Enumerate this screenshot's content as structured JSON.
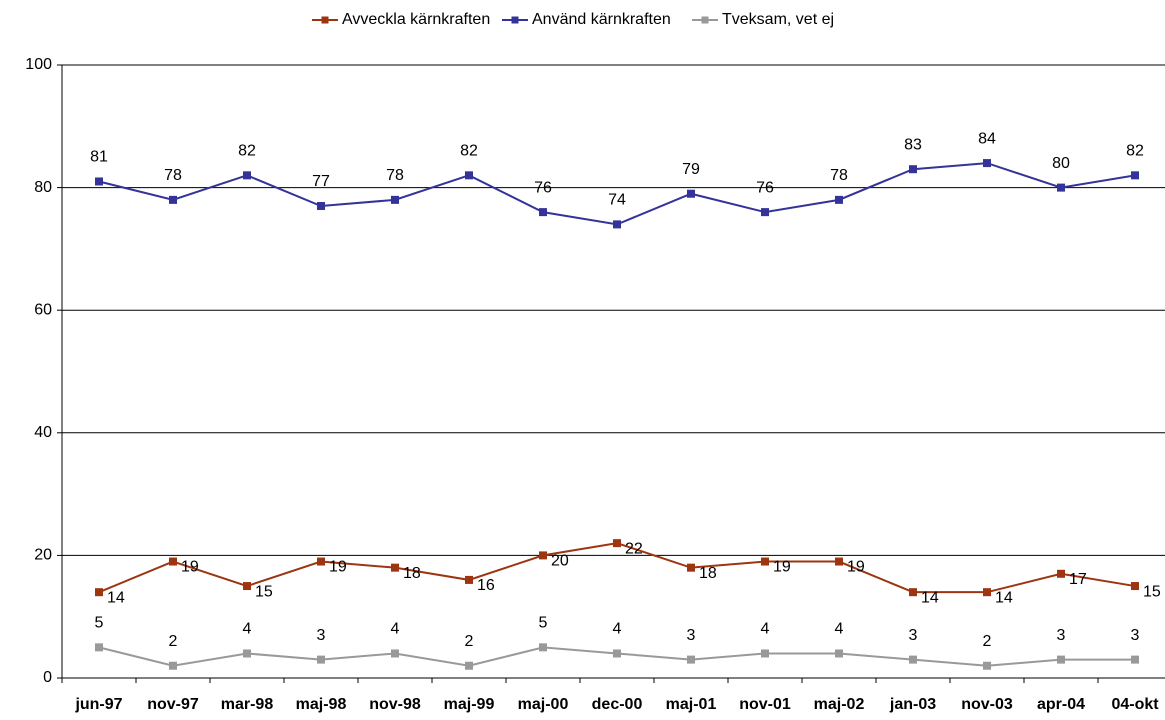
{
  "chart_data": {
    "type": "line",
    "categories": [
      "jun-97",
      "nov-97",
      "mar-98",
      "maj-98",
      "nov-98",
      "maj-99",
      "maj-00",
      "dec-00",
      "maj-01",
      "nov-01",
      "maj-02",
      "jan-03",
      "nov-03",
      "apr-04",
      "04-okt"
    ],
    "series": [
      {
        "name": "Avveckla kärnkraften",
        "color": "#9c3510",
        "values": [
          14,
          19,
          15,
          19,
          18,
          16,
          20,
          22,
          18,
          19,
          19,
          14,
          14,
          17,
          15
        ]
      },
      {
        "name": "Använd kärnkraften",
        "color": "#333399",
        "values": [
          81,
          78,
          82,
          77,
          78,
          82,
          76,
          74,
          79,
          76,
          78,
          83,
          84,
          80,
          82
        ]
      },
      {
        "name": "Tveksam, vet ej",
        "color": "#999999",
        "values": [
          5,
          2,
          4,
          3,
          4,
          2,
          5,
          4,
          3,
          4,
          4,
          3,
          2,
          3,
          3
        ]
      }
    ],
    "ylim": [
      0,
      100
    ],
    "yticks": [
      0,
      20,
      40,
      60,
      80,
      100
    ],
    "grid": true,
    "legend": "top"
  }
}
